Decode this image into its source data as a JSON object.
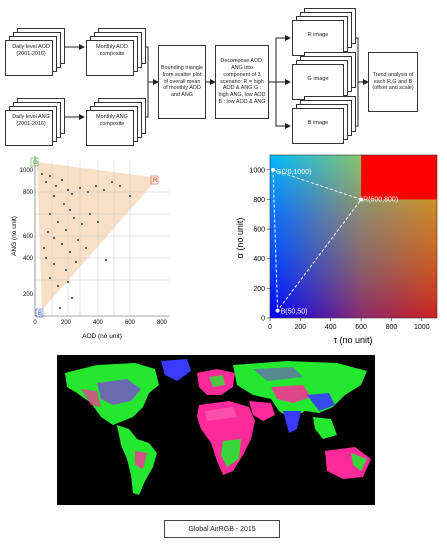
{
  "flowchart": {
    "input_aod": "Daily level AOD (2001-2016)",
    "input_ang": "Daily level ANG (2001-2016)",
    "composite_aod": "Monthly AOD composite",
    "composite_ang": "Monthly ANG composite",
    "bounding": "Bounding triangle from scatter plot of overall mean of monthly AOD and ANG",
    "decompose": "Decompose AOD, ANG into component of 3 scenario: R = high AOD & ANG G : high ANG, low AOD B : low AOD & ANG",
    "r_image": "R image",
    "g_image": "G image",
    "b_image": "B image",
    "trend": "Trend analysis of each R,G and B (offset and scale)"
  },
  "scatter": {
    "xlabel": "AOD (no unit)",
    "ylabel": "ANG (no unit)",
    "xticks": [
      "0",
      "200",
      "400",
      "600",
      "800"
    ],
    "yticks": [
      "200",
      "400",
      "600",
      "800",
      "1000"
    ],
    "corner_r": "R",
    "corner_g": "G",
    "corner_b": "B",
    "colors": {
      "triangle": "#f3c9a0",
      "city": "#333333",
      "corner_r": "#e03030",
      "corner_g": "#2aa02a",
      "corner_b": "#2f4fd0"
    }
  },
  "rgb_space": {
    "xlabel": "τ (no unit)",
    "ylabel": "α (no unit)",
    "xticks": [
      "0",
      "200",
      "400",
      "600",
      "800",
      "1000"
    ],
    "yticks": [
      "0",
      "200",
      "400",
      "600",
      "800",
      "1000"
    ],
    "label_g": "G(20,1000)",
    "label_r": "R(600,800)",
    "label_b": "B(50,50)",
    "points": [
      {
        "name": "G",
        "tau": 20,
        "alpha": 1000
      },
      {
        "name": "R",
        "tau": 600,
        "alpha": 800
      },
      {
        "name": "B",
        "tau": 50,
        "alpha": 50
      }
    ],
    "colors": {
      "corner_r": "#ff0000",
      "corner_g": "#00d000",
      "corner_b": "#0000ff",
      "lines": "#ffffff"
    }
  },
  "map": {
    "colors": {
      "ocean": "#000000",
      "green": "#24e830",
      "pink": "#ff2a9a",
      "blue": "#3a3aff",
      "purple": "#7a4ad0"
    }
  },
  "caption": "Global AirRGB - 2015",
  "chart_data": {
    "type": "scatter",
    "title": "",
    "xlabel": "τ (no unit)",
    "ylabel": "α (no unit)",
    "xlim": [
      0,
      1100
    ],
    "ylim": [
      0,
      1100
    ],
    "x": [
      20,
      600,
      50
    ],
    "y": [
      1000,
      800,
      50
    ],
    "point_labels": [
      "G(20,1000)",
      "R(600,800)",
      "B(50,50)"
    ]
  }
}
